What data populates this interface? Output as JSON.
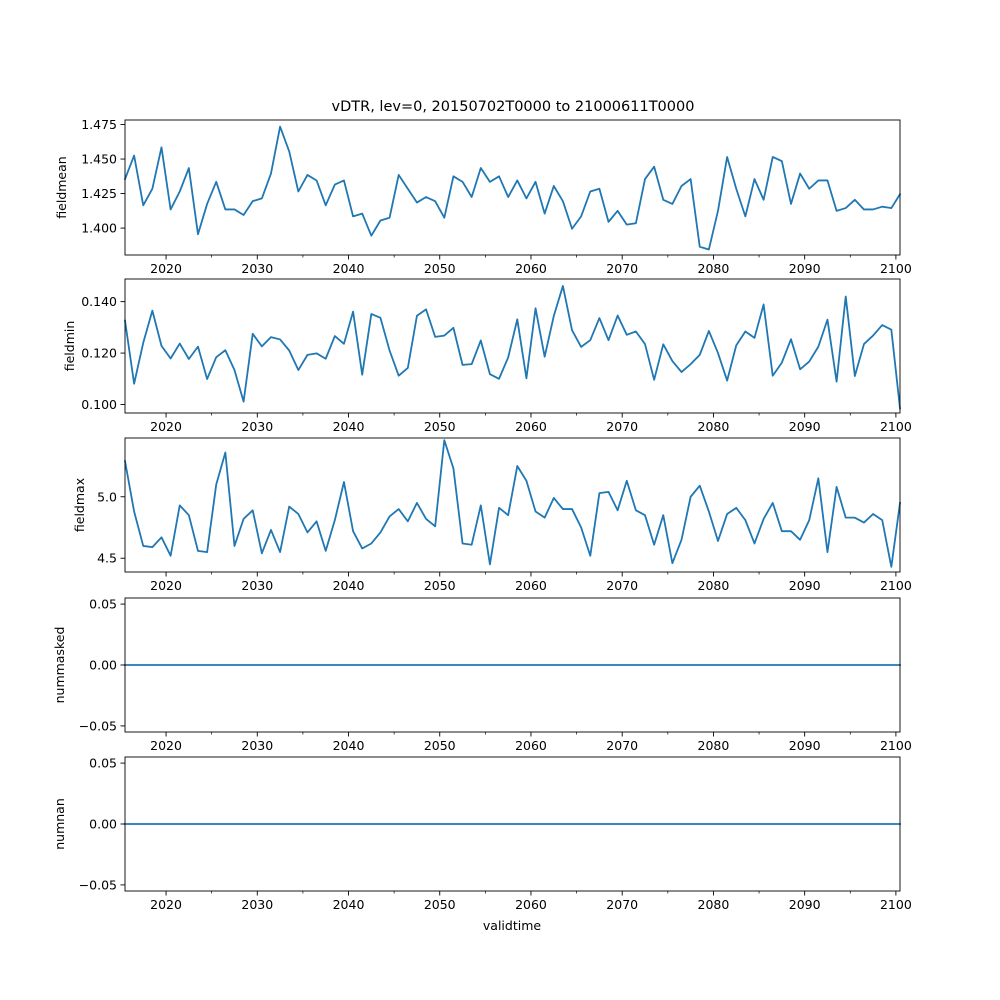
{
  "figure": {
    "title": "vDTR, lev=0, 20150702T0000 to 21000611T0000",
    "xlabel": "validtime"
  },
  "colors": {
    "line": "#1f77b4",
    "axes": "#000000",
    "background": "#ffffff"
  },
  "chart_data": [
    {
      "type": "line",
      "name": "fieldmean",
      "ylabel": "fieldmean",
      "xlim": [
        2015.5,
        2100.45
      ],
      "ylim": [
        1.3805,
        1.4783
      ],
      "x_ticks": [
        2020,
        2030,
        2040,
        2050,
        2060,
        2070,
        2080,
        2090,
        2100
      ],
      "x_tick_labels": [
        "2020",
        "2030",
        "2040",
        "2050",
        "2060",
        "2070",
        "2080",
        "2090",
        "2100"
      ],
      "y_ticks": [
        1.4,
        1.425,
        1.45,
        1.475
      ],
      "y_tick_labels": [
        "1.400",
        "1.425",
        "1.450",
        "1.475"
      ],
      "x": [
        2015.5,
        2016.5,
        2017.5,
        2018.5,
        2019.5,
        2020.5,
        2021.5,
        2022.5,
        2023.5,
        2024.5,
        2025.5,
        2026.5,
        2027.5,
        2028.5,
        2029.5,
        2030.5,
        2031.5,
        2032.5,
        2033.5,
        2034.5,
        2035.5,
        2036.5,
        2037.5,
        2038.5,
        2039.5,
        2040.5,
        2041.5,
        2042.5,
        2043.5,
        2044.5,
        2045.5,
        2046.5,
        2047.5,
        2048.5,
        2049.5,
        2050.5,
        2051.5,
        2052.5,
        2053.5,
        2054.5,
        2055.5,
        2056.5,
        2057.5,
        2058.5,
        2059.5,
        2060.5,
        2061.5,
        2062.5,
        2063.5,
        2064.5,
        2065.5,
        2066.5,
        2067.5,
        2068.5,
        2069.5,
        2070.5,
        2071.5,
        2072.5,
        2073.5,
        2074.5,
        2075.5,
        2076.5,
        2077.5,
        2078.5,
        2079.5,
        2080.5,
        2081.5,
        2082.5,
        2083.5,
        2084.5,
        2085.5,
        2086.5,
        2087.5,
        2088.5,
        2089.5,
        2090.5,
        2091.5,
        2092.5,
        2093.5,
        2094.5,
        2095.5,
        2096.5,
        2097.5,
        2098.5,
        2099.5,
        2100.45
      ],
      "values": [
        1.4355,
        1.4525,
        1.4165,
        1.4285,
        1.4585,
        1.4135,
        1.4265,
        1.4435,
        1.3955,
        1.4175,
        1.4335,
        1.4135,
        1.4135,
        1.4095,
        1.4195,
        1.4215,
        1.4395,
        1.4735,
        1.4555,
        1.4265,
        1.4385,
        1.4345,
        1.4165,
        1.4315,
        1.4345,
        1.4085,
        1.4105,
        1.3945,
        1.4055,
        1.4075,
        1.4385,
        1.4285,
        1.4185,
        1.4225,
        1.4195,
        1.4075,
        1.4375,
        1.4335,
        1.4225,
        1.4435,
        1.4335,
        1.4375,
        1.4225,
        1.4345,
        1.4215,
        1.4335,
        1.4105,
        1.4305,
        1.4195,
        1.3995,
        1.4085,
        1.4265,
        1.4285,
        1.4045,
        1.4125,
        1.4025,
        1.4035,
        1.4355,
        1.4445,
        1.4205,
        1.4175,
        1.4305,
        1.4355,
        1.3865,
        1.3845,
        1.4125,
        1.4515,
        1.4285,
        1.4085,
        1.4355,
        1.4205,
        1.4515,
        1.4485,
        1.4175,
        1.4395,
        1.4285,
        1.4345,
        1.4345,
        1.4125,
        1.4145,
        1.4205,
        1.4135,
        1.4135,
        1.4155,
        1.4145,
        1.4245
      ]
    },
    {
      "type": "line",
      "name": "fieldmin",
      "ylabel": "fieldmin",
      "xlim": [
        2015.5,
        2100.45
      ],
      "ylim": [
        0.0967,
        0.1488
      ],
      "x_ticks": [
        2020,
        2030,
        2040,
        2050,
        2060,
        2070,
        2080,
        2090,
        2100
      ],
      "x_tick_labels": [
        "2020",
        "2030",
        "2040",
        "2050",
        "2060",
        "2070",
        "2080",
        "2090",
        "2100"
      ],
      "y_ticks": [
        0.1,
        0.12,
        0.14
      ],
      "y_tick_labels": [
        "0.100",
        "0.120",
        "0.140"
      ],
      "x": [
        2015.5,
        2016.5,
        2017.5,
        2018.5,
        2019.5,
        2020.5,
        2021.5,
        2022.5,
        2023.5,
        2024.5,
        2025.5,
        2026.5,
        2027.5,
        2028.5,
        2029.5,
        2030.5,
        2031.5,
        2032.5,
        2033.5,
        2034.5,
        2035.5,
        2036.5,
        2037.5,
        2038.5,
        2039.5,
        2040.5,
        2041.5,
        2042.5,
        2043.5,
        2044.5,
        2045.5,
        2046.5,
        2047.5,
        2048.5,
        2049.5,
        2050.5,
        2051.5,
        2052.5,
        2053.5,
        2054.5,
        2055.5,
        2056.5,
        2057.5,
        2058.5,
        2059.5,
        2060.5,
        2061.5,
        2062.5,
        2063.5,
        2064.5,
        2065.5,
        2066.5,
        2067.5,
        2068.5,
        2069.5,
        2070.5,
        2071.5,
        2072.5,
        2073.5,
        2074.5,
        2075.5,
        2076.5,
        2077.5,
        2078.5,
        2079.5,
        2080.5,
        2081.5,
        2082.5,
        2083.5,
        2084.5,
        2085.5,
        2086.5,
        2087.5,
        2088.5,
        2089.5,
        2090.5,
        2091.5,
        2092.5,
        2093.5,
        2094.5,
        2095.5,
        2096.5,
        2097.5,
        2098.5,
        2099.5,
        2100.45
      ],
      "values": [
        0.1326,
        0.1081,
        0.124,
        0.1365,
        0.1228,
        0.1179,
        0.1237,
        0.1177,
        0.1225,
        0.1099,
        0.1184,
        0.1211,
        0.1134,
        0.1011,
        0.1275,
        0.1226,
        0.1262,
        0.1253,
        0.121,
        0.1134,
        0.1193,
        0.1199,
        0.1178,
        0.1266,
        0.1236,
        0.1361,
        0.1116,
        0.1352,
        0.1337,
        0.121,
        0.1112,
        0.1142,
        0.1345,
        0.137,
        0.1263,
        0.1268,
        0.1298,
        0.1154,
        0.1157,
        0.1249,
        0.1118,
        0.11,
        0.1183,
        0.1331,
        0.1102,
        0.1374,
        0.1186,
        0.1344,
        0.1461,
        0.1289,
        0.1224,
        0.125,
        0.1336,
        0.125,
        0.1346,
        0.1271,
        0.1284,
        0.1235,
        0.1096,
        0.1234,
        0.1169,
        0.1126,
        0.1157,
        0.1193,
        0.1286,
        0.12,
        0.1093,
        0.123,
        0.1284,
        0.1259,
        0.1389,
        0.1112,
        0.1163,
        0.1254,
        0.1137,
        0.1167,
        0.1225,
        0.133,
        0.1089,
        0.142,
        0.1111,
        0.1235,
        0.1268,
        0.1309,
        0.1291,
        0.0985
      ]
    },
    {
      "type": "line",
      "name": "fieldmax",
      "ylabel": "fieldmax",
      "xlim": [
        2015.5,
        2100.45
      ],
      "ylim": [
        4.388,
        5.478
      ],
      "x_ticks": [
        2020,
        2030,
        2040,
        2050,
        2060,
        2070,
        2080,
        2090,
        2100
      ],
      "x_tick_labels": [
        "2020",
        "2030",
        "2040",
        "2050",
        "2060",
        "2070",
        "2080",
        "2090",
        "2100"
      ],
      "y_ticks": [
        4.5,
        5.0
      ],
      "y_tick_labels": [
        "4.5",
        "5.0"
      ],
      "x": [
        2015.5,
        2016.5,
        2017.5,
        2018.5,
        2019.5,
        2020.5,
        2021.5,
        2022.5,
        2023.5,
        2024.5,
        2025.5,
        2026.5,
        2027.5,
        2028.5,
        2029.5,
        2030.5,
        2031.5,
        2032.5,
        2033.5,
        2034.5,
        2035.5,
        2036.5,
        2037.5,
        2038.5,
        2039.5,
        2040.5,
        2041.5,
        2042.5,
        2043.5,
        2044.5,
        2045.5,
        2046.5,
        2047.5,
        2048.5,
        2049.5,
        2050.5,
        2051.5,
        2052.5,
        2053.5,
        2054.5,
        2055.5,
        2056.5,
        2057.5,
        2058.5,
        2059.5,
        2060.5,
        2061.5,
        2062.5,
        2063.5,
        2064.5,
        2065.5,
        2066.5,
        2067.5,
        2068.5,
        2069.5,
        2070.5,
        2071.5,
        2072.5,
        2073.5,
        2074.5,
        2075.5,
        2076.5,
        2077.5,
        2078.5,
        2079.5,
        2080.5,
        2081.5,
        2082.5,
        2083.5,
        2084.5,
        2085.5,
        2086.5,
        2087.5,
        2088.5,
        2089.5,
        2090.5,
        2091.5,
        2092.5,
        2093.5,
        2094.5,
        2095.5,
        2096.5,
        2097.5,
        2098.5,
        2099.5,
        2100.45
      ],
      "values": [
        5.29,
        4.88,
        4.6,
        4.59,
        4.67,
        4.52,
        4.93,
        4.85,
        4.56,
        4.55,
        5.1,
        5.36,
        4.6,
        4.82,
        4.89,
        4.54,
        4.73,
        4.55,
        4.92,
        4.86,
        4.71,
        4.8,
        4.56,
        4.81,
        5.12,
        4.72,
        4.58,
        4.62,
        4.71,
        4.84,
        4.9,
        4.8,
        4.95,
        4.82,
        4.76,
        5.46,
        5.23,
        4.62,
        4.61,
        4.93,
        4.45,
        4.91,
        4.85,
        5.25,
        5.13,
        4.88,
        4.83,
        4.99,
        4.9,
        4.9,
        4.75,
        4.52,
        5.03,
        5.04,
        4.89,
        5.13,
        4.89,
        4.85,
        4.61,
        4.85,
        4.46,
        4.65,
        5.0,
        5.09,
        4.88,
        4.64,
        4.86,
        4.91,
        4.81,
        4.62,
        4.82,
        4.95,
        4.72,
        4.72,
        4.65,
        4.81,
        5.15,
        4.55,
        5.08,
        4.83,
        4.83,
        4.79,
        4.86,
        4.81,
        4.43,
        4.95
      ]
    },
    {
      "type": "line",
      "name": "nummasked",
      "ylabel": "nummasked",
      "xlim": [
        2015.5,
        2100.45
      ],
      "ylim": [
        -0.055,
        0.055
      ],
      "x_ticks": [
        2020,
        2030,
        2040,
        2050,
        2060,
        2070,
        2080,
        2090,
        2100
      ],
      "x_tick_labels": [
        "2020",
        "2030",
        "2040",
        "2050",
        "2060",
        "2070",
        "2080",
        "2090",
        "2100"
      ],
      "y_ticks": [
        -0.05,
        0.0,
        0.05
      ],
      "y_tick_labels": [
        "−0.05",
        "0.00",
        "0.05"
      ],
      "x": [
        2015.5,
        2100.45
      ],
      "values": [
        0,
        0
      ]
    },
    {
      "type": "line",
      "name": "numnan",
      "ylabel": "numnan",
      "xlim": [
        2015.5,
        2100.45
      ],
      "ylim": [
        -0.055,
        0.055
      ],
      "x_ticks": [
        2020,
        2030,
        2040,
        2050,
        2060,
        2070,
        2080,
        2090,
        2100
      ],
      "x_tick_labels": [
        "2020",
        "2030",
        "2040",
        "2050",
        "2060",
        "2070",
        "2080",
        "2090",
        "2100"
      ],
      "y_ticks": [
        -0.05,
        0.0,
        0.05
      ],
      "y_tick_labels": [
        "−0.05",
        "0.00",
        "0.05"
      ],
      "x": [
        2015.5,
        2100.45
      ],
      "values": [
        0,
        0
      ]
    }
  ]
}
